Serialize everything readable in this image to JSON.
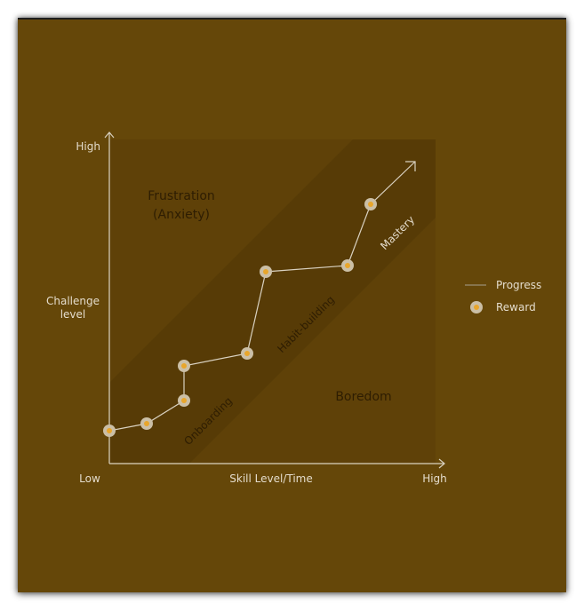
{
  "axes": {
    "y_high": "High",
    "y_label_line1": "Challenge",
    "y_label_line2": "level",
    "x_low": "Low",
    "x_label": "Skill Level/Time",
    "x_high": "High"
  },
  "zones": {
    "frustration_line1": "Frustration",
    "frustration_line2": "(Anxiety)",
    "boredom": "Boredom"
  },
  "phases": {
    "onboarding": "Onboarding",
    "habit_building": "Habit-building",
    "mastery": "Mastery"
  },
  "legend": {
    "progress": "Progress",
    "reward": "Reward"
  },
  "colors": {
    "background": "#654709",
    "plot_area": "#5f4108",
    "flow_band": "#573b06",
    "axis": "#d9d1c0",
    "reward_ring": "#cbbfa6",
    "reward_core": "#e8a62c"
  }
}
